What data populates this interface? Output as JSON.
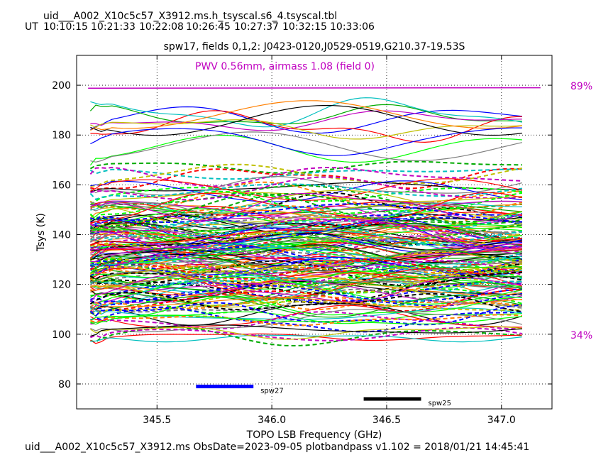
{
  "header": {
    "table_name": "uid___A002_X10c5c57_X3912.ms.h_tsyscal.s6_4.tsyscal.tbl",
    "ut_label": "UT",
    "ut_times": [
      "10:10:15",
      "10:21:33",
      "10:22:08",
      "10:26:45",
      "10:27:37",
      "10:32:15",
      "10:33:06"
    ]
  },
  "footer": {
    "text": "uid___A002_X10c5c57_X3912.ms  ObsDate=2023-09-05   plotbandpass v1.102 = 2018/01/21 14:45:41"
  },
  "chart_data": {
    "type": "line",
    "title": "spw17,  fields 0,1,2: J0423-0120,J0529-0519,G210.37-19.53S",
    "xlabel": "TOPO LSB Frequency (GHz)",
    "ylabel": "Tsys (K)",
    "xlim": [
      345.15,
      347.22
    ],
    "ylim": [
      70,
      212
    ],
    "xticks": [
      345.5,
      346.0,
      346.5,
      347.0
    ],
    "xtick_labels": [
      "345.5",
      "346.0",
      "346.5",
      "347.0"
    ],
    "yticks": [
      80,
      100,
      120,
      140,
      160,
      180,
      200
    ],
    "ytick_labels": [
      "80",
      "100",
      "120",
      "140",
      "160",
      "180",
      "200"
    ],
    "grid": true,
    "pwv_annotation": "PWV 0.56mm, airmass 1.08 (field 0)",
    "transmission_labels": {
      "top": "89%",
      "bottom": "34%"
    },
    "transmission_curve": {
      "color": "#c000c0",
      "x": [
        345.2,
        347.17
      ],
      "y": [
        198.8,
        199.0
      ]
    },
    "spectral_windows": [
      {
        "name": "spw27",
        "x": [
          345.67,
          345.92
        ],
        "y": 79,
        "color": "#0000ff"
      },
      {
        "name": "spw25",
        "x": [
          346.4,
          346.65
        ],
        "y": 74,
        "color": "#000000"
      }
    ],
    "freq_range": [
      345.21,
      347.09
    ],
    "colors": [
      "#0000ff",
      "#00aa00",
      "#ff0000",
      "#00bfbf",
      "#c000c0",
      "#c0c000",
      "#000000",
      "#ff7f00",
      "#00ff00",
      "#7f7f7f"
    ],
    "series_levels": [
      {
        "level": 185,
        "amplitude": 5,
        "count": 8,
        "style": "solid"
      },
      {
        "level": 177,
        "amplitude": 4,
        "count": 3,
        "style": "solid"
      },
      {
        "level": 166,
        "amplitude": 3,
        "count": 5,
        "style": "dashed"
      },
      {
        "level": 157,
        "amplitude": 3,
        "count": 10,
        "style": "mixed"
      },
      {
        "level": 148,
        "amplitude": 4,
        "count": 30,
        "style": "mixed"
      },
      {
        "level": 138,
        "amplitude": 4,
        "count": 40,
        "style": "mixed"
      },
      {
        "level": 128,
        "amplitude": 4,
        "count": 40,
        "style": "mixed"
      },
      {
        "level": 118,
        "amplitude": 4,
        "count": 30,
        "style": "mixed"
      },
      {
        "level": 109,
        "amplitude": 3,
        "count": 15,
        "style": "mixed"
      },
      {
        "level": 102,
        "amplitude": 2,
        "count": 8,
        "style": "mixed"
      }
    ]
  }
}
